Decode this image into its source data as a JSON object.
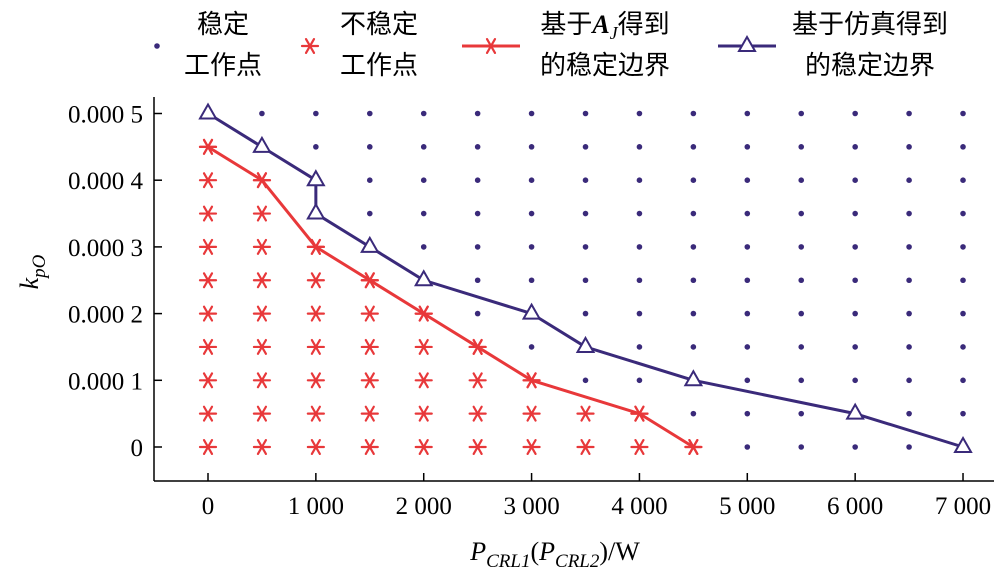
{
  "chart_data": {
    "type": "scatter",
    "xlabel": "P_CRL1(P_CRL2)/W",
    "xlabel_parts": [
      "P",
      "CRL1",
      "(P",
      "CRL2",
      ")/W"
    ],
    "ylabel": "k_pO",
    "ylabel_parts": [
      "k",
      "pO"
    ],
    "xlim": [
      -500,
      7300
    ],
    "ylim": [
      -5e-05,
      0.00052
    ],
    "x_ticks": [
      0,
      1000,
      2000,
      3000,
      4000,
      5000,
      6000,
      7000
    ],
    "x_tick_labels": [
      "0",
      "1 000",
      "2 000",
      "3 000",
      "4 000",
      "5 000",
      "6 000",
      "7 000"
    ],
    "y_ticks": [
      0,
      0.0001,
      0.0002,
      0.0003,
      0.0004,
      0.0005
    ],
    "y_tick_labels": [
      "0",
      "0.000 1",
      "0.000 2",
      "0.000 3",
      "0.000 4",
      "0.000 5"
    ],
    "grid": false,
    "legend_position": "top",
    "legend": [
      {
        "key": "stable",
        "label_lines": [
          "稳定",
          "工作点"
        ]
      },
      {
        "key": "unstable",
        "label_lines": [
          "不稳定",
          "工作点"
        ]
      },
      {
        "key": "aj",
        "label_lines": [
          "基于A_J得到",
          "的稳定边界"
        ]
      },
      {
        "key": "sim",
        "label_lines": [
          "基于仿真得到",
          "的稳定边界"
        ]
      }
    ],
    "legend_italic_parts": {
      "base": "A",
      "sub": "J"
    },
    "colors": {
      "stable": "#3a2a7a",
      "unstable": "#e8383a",
      "aj": "#e8383a",
      "sim": "#3a2a7a"
    },
    "grid_x": [
      0,
      500,
      1000,
      1500,
      2000,
      2500,
      3000,
      3500,
      4000,
      4500,
      5000,
      5500,
      6000,
      6500,
      7000
    ],
    "grid_y": [
      0,
      5e-05,
      0.0001,
      0.00015,
      0.0002,
      0.00025,
      0.0003,
      0.00035,
      0.0004,
      0.00045,
      0.0005
    ],
    "unstable_max_y_by_x": [
      [
        0,
        0.00045
      ],
      [
        500,
        0.0004
      ],
      [
        1000,
        0.0003
      ],
      [
        1500,
        0.00025
      ],
      [
        2000,
        0.0002
      ],
      [
        2500,
        0.00015
      ],
      [
        3000,
        0.0001
      ],
      [
        3500,
        5e-05
      ],
      [
        4000,
        5e-05
      ],
      [
        4500,
        0
      ]
    ],
    "aj_boundary": {
      "x": [
        0,
        500,
        1000,
        1500,
        2000,
        2500,
        3000,
        4000,
        4500
      ],
      "y": [
        0.00045,
        0.0004,
        0.0003,
        0.00025,
        0.0002,
        0.00015,
        0.0001,
        5e-05,
        0
      ]
    },
    "sim_boundary": {
      "x": [
        0,
        500,
        1000,
        1000,
        1500,
        2000,
        3000,
        3500,
        4500,
        6000,
        7000
      ],
      "y": [
        0.0005,
        0.00045,
        0.0004,
        0.00035,
        0.0003,
        0.00025,
        0.0002,
        0.00015,
        0.0001,
        5e-05,
        0
      ]
    }
  }
}
